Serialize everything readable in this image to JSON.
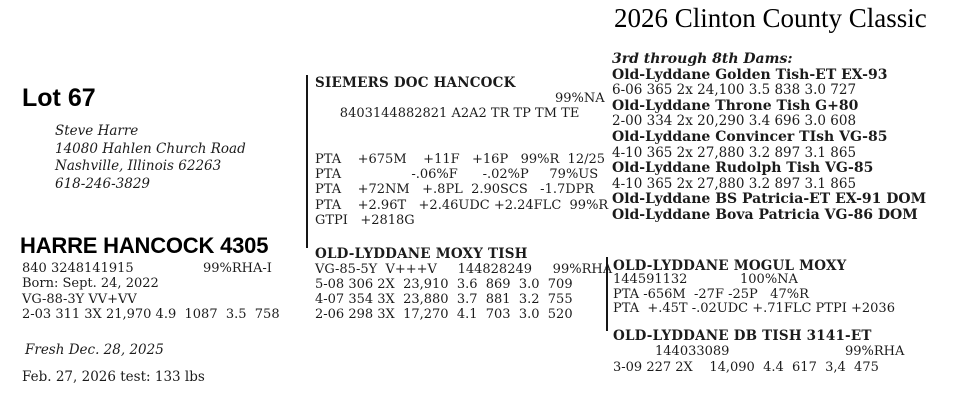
{
  "title": "2026 Clinton County Classic",
  "lot": {
    "number": "Lot 67"
  },
  "seller": {
    "name": "Steve Harre",
    "address_line1": "14080 Hahlen Church Road",
    "address_line2": "Nashville, Illinois 62263",
    "phone": "618-246-3829"
  },
  "animal": {
    "name": "HARRE HANCOCK 4305",
    "id": "840 3248141915",
    "rha": "99%RHA-I",
    "born": "Born: Sept. 24, 2022",
    "classification": "VG-88-3Y VV+VV",
    "record": "2-03 311 3X 21,970 4.9  1087  3.5  758",
    "fresh_note": "Fresh Dec. 28, 2025",
    "test_note": "Feb. 27, 2026 test: 133 lbs"
  },
  "sire": {
    "name": "SIEMERS DOC HANCOCK",
    "id_line": "8403144882821 A2A2 TR TP TM TE",
    "reliability": "99%NA",
    "pta_lines": [
      "PTA    +675M    +11F   +16P   99%R  12/25",
      "PTA                 -.06%F      -.02%P     79%US",
      "PTA    +72NM   +.8PL  2.90SCS   -1.7DPR",
      "PTA    +2.96T   +2.46UDC +2.24FLC  99%R",
      "GTPI   +2818G"
    ]
  },
  "dam": {
    "name": "OLD-LYDDANE MOXY TISH",
    "score_line": "VG-85-5Y  V+++V     144828249     99%RHA",
    "records": [
      "5-08 306 2X  23,910  3.6  869  3.0  709",
      "4-07 354 3X  23,880  3.7  881  3.2  755",
      "2-06 298 3X  17,270  4.1  703  3.0  520"
    ]
  },
  "second_dam": {
    "name": "OLD-LYDDANE MOGUL MOXY",
    "id": "144591132",
    "reliability": "100%NA",
    "pta_lines": [
      "PTA -656M  -27F -25P   47%R",
      "PTA  +.45T -.02UDC +.71FLC PTPI +2036"
    ]
  },
  "third_dam": {
    "name": "OLD-LYDDANE DB TISH 3141-ET",
    "id": "144033089",
    "rha": "99%RHA",
    "record": "3-09 227 2X    14,090  4.4  617  3,4  475"
  },
  "later_dams": {
    "heading": "3rd through 8th Dams:",
    "lines": [
      "Old-Lyddane Golden Tish-ET EX-93",
      "6-06 365 2x 24,100 3.5 838 3.0 727",
      "Old-Lyddane Throne Tish G+80",
      "2-00 334 2x 20,290 3.4 696 3.0 608",
      "Old-Lyddane Convincer TIsh VG-85",
      "4-10 365 2x 27,880 3.2 897 3.1 865",
      "Old-Lyddane Rudolph Tish VG-85",
      "4-10 365 2x 27,880 3.2 897 3.1 865",
      "Old-Lyddane BS Patricia-ET EX-91 DOM",
      "Old-Lyddane Bova Patricia VG-86 DOM"
    ]
  }
}
